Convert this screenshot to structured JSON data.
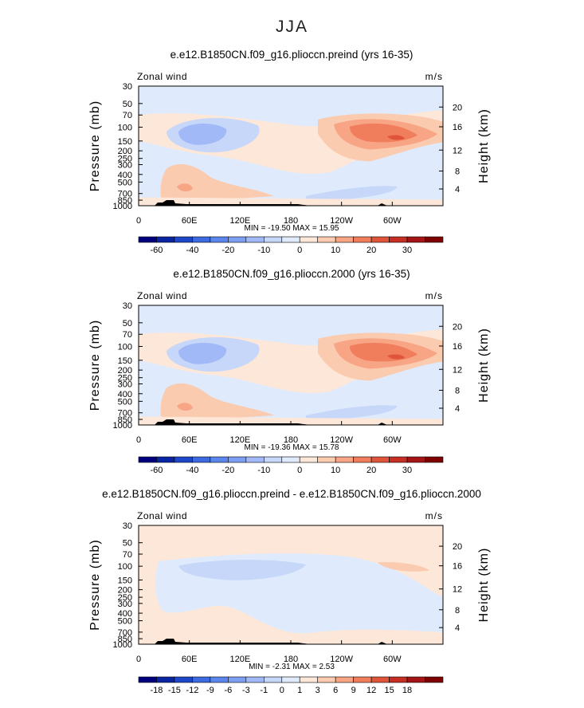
{
  "figure": {
    "title": "JJA"
  },
  "chart_data": [
    {
      "type": "heatmap",
      "title": "e.e12.B1850CN.f09_g16.plioccn.preind (yrs 16-35)",
      "left_string": "Zonal wind",
      "right_string": "m/s",
      "xlabel": "",
      "ylabel": "Pressure (mb)",
      "ylabel_right": "Height (km)",
      "x_ticks": [
        "0",
        "60E",
        "120E",
        "180",
        "120W",
        "60W"
      ],
      "y_ticks": [
        "30",
        "50",
        "70",
        "100",
        "150",
        "200",
        "250",
        "300",
        "400",
        "500",
        "700",
        "850",
        "1000"
      ],
      "y_ticks_right": [
        "20",
        "16",
        "12",
        "8",
        "4"
      ],
      "stats": "MIN = -19.50   MAX =  15.95",
      "min": -19.5,
      "max": 15.95,
      "colorbar_levels": [
        "-60",
        "-40",
        "-20",
        "-10",
        "0",
        "10",
        "20",
        "30"
      ],
      "colorbar_colors": [
        "#00007f",
        "#0a25a4",
        "#1f47c9",
        "#3d6ae0",
        "#5a86ee",
        "#7c9ff4",
        "#a1baf7",
        "#c6d7fa",
        "#dfebfc",
        "#fde7d8",
        "#fbcbb0",
        "#f7a585",
        "#f07d5b",
        "#e0553a",
        "#c72f24",
        "#a51416",
        "#7f0000"
      ]
    },
    {
      "type": "heatmap",
      "title": "e.e12.B1850CN.f09_g16.plioccn.2000 (yrs 16-35)",
      "left_string": "Zonal wind",
      "right_string": "m/s",
      "xlabel": "",
      "ylabel": "Pressure (mb)",
      "ylabel_right": "Height (km)",
      "x_ticks": [
        "0",
        "60E",
        "120E",
        "180",
        "120W",
        "60W"
      ],
      "y_ticks": [
        "30",
        "50",
        "70",
        "100",
        "150",
        "200",
        "250",
        "300",
        "400",
        "500",
        "700",
        "850",
        "1000"
      ],
      "y_ticks_right": [
        "20",
        "16",
        "12",
        "8",
        "4"
      ],
      "stats": "MIN = -19.36   MAX =  15.78",
      "min": -19.36,
      "max": 15.78,
      "colorbar_levels": [
        "-60",
        "-40",
        "-20",
        "-10",
        "0",
        "10",
        "20",
        "30"
      ],
      "colorbar_colors": [
        "#00007f",
        "#0a25a4",
        "#1f47c9",
        "#3d6ae0",
        "#5a86ee",
        "#7c9ff4",
        "#a1baf7",
        "#c6d7fa",
        "#dfebfc",
        "#fde7d8",
        "#fbcbb0",
        "#f7a585",
        "#f07d5b",
        "#e0553a",
        "#c72f24",
        "#a51416",
        "#7f0000"
      ]
    },
    {
      "type": "heatmap",
      "title": "e.e12.B1850CN.f09_g16.plioccn.preind - e.e12.B1850CN.f09_g16.plioccn.2000",
      "left_string": "Zonal wind",
      "right_string": "m/s",
      "xlabel": "",
      "ylabel": "Pressure (mb)",
      "ylabel_right": "Height (km)",
      "x_ticks": [
        "0",
        "60E",
        "120E",
        "180",
        "120W",
        "60W"
      ],
      "y_ticks": [
        "30",
        "50",
        "70",
        "100",
        "150",
        "200",
        "250",
        "300",
        "400",
        "500",
        "700",
        "850",
        "1000"
      ],
      "y_ticks_right": [
        "20",
        "16",
        "12",
        "8",
        "4"
      ],
      "stats": "MIN =  -2.31   MAX =   2.53",
      "min": -2.31,
      "max": 2.53,
      "colorbar_levels": [
        "-18",
        "-15",
        "-12",
        "-9",
        "-6",
        "-3",
        "-1",
        "0",
        "1",
        "3",
        "6",
        "9",
        "12",
        "15",
        "18"
      ],
      "colorbar_colors": [
        "#00007f",
        "#0a25a4",
        "#1f47c9",
        "#3d6ae0",
        "#5a86ee",
        "#7c9ff4",
        "#a1baf7",
        "#c6d7fa",
        "#dfebfc",
        "#fde7d8",
        "#fbcbb0",
        "#f7a585",
        "#f07d5b",
        "#e0553a",
        "#c72f24",
        "#a51416",
        "#7f0000"
      ]
    }
  ]
}
